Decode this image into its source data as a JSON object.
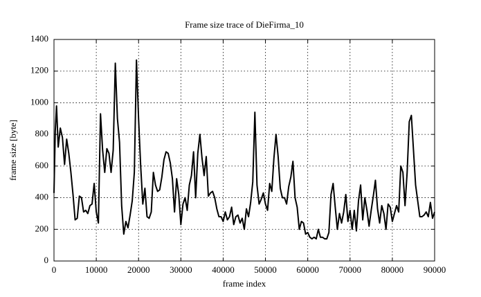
{
  "chart_data": {
    "type": "line",
    "title": "Frame size trace of DieFirma_10",
    "xlabel": "frame index",
    "ylabel": "frame size [byte]",
    "xlim": [
      0,
      90000
    ],
    "ylim": [
      0,
      1400
    ],
    "xticks": [
      0,
      10000,
      20000,
      30000,
      40000,
      50000,
      60000,
      70000,
      80000,
      90000
    ],
    "yticks": [
      0,
      200,
      400,
      600,
      800,
      1000,
      1200,
      1400
    ],
    "grid": true,
    "x": [
      0,
      300,
      600,
      1000,
      1500,
      2000,
      2500,
      3000,
      3500,
      4000,
      4500,
      5000,
      5500,
      6000,
      6500,
      7000,
      7500,
      8000,
      8500,
      9000,
      9500,
      10000,
      10500,
      11000,
      11500,
      12000,
      12500,
      13000,
      13500,
      14000,
      14500,
      15000,
      15500,
      16000,
      16500,
      17000,
      17500,
      18000,
      18500,
      19000,
      19500,
      20000,
      20500,
      21000,
      21500,
      22000,
      22500,
      23000,
      23500,
      24000,
      24500,
      25000,
      25500,
      26000,
      26500,
      27000,
      27500,
      28000,
      28500,
      29000,
      29500,
      30000,
      30500,
      31000,
      31500,
      32000,
      32500,
      33000,
      33500,
      34000,
      34500,
      35000,
      35500,
      36000,
      36500,
      37000,
      37500,
      38000,
      38500,
      39000,
      39500,
      40000,
      40500,
      41000,
      41500,
      42000,
      42500,
      43000,
      43500,
      44000,
      44500,
      45000,
      45500,
      46000,
      46500,
      47000,
      47500,
      48000,
      48500,
      49000,
      49500,
      50000,
      50500,
      51000,
      51500,
      52000,
      52500,
      53000,
      53500,
      54000,
      54500,
      55000,
      55500,
      56000,
      56500,
      57000,
      57500,
      58000,
      58500,
      59000,
      59500,
      60000,
      60500,
      61000,
      61500,
      62000,
      62500,
      63000,
      63500,
      64000,
      64500,
      65000,
      65500,
      66000,
      66500,
      67000,
      67500,
      68000,
      68500,
      69000,
      69500,
      70000,
      70500,
      71000,
      71500,
      72000,
      72500,
      73000,
      73500,
      74000,
      74500,
      75000,
      75500,
      76000,
      76500,
      77000,
      77500,
      78000,
      78500,
      79000,
      79500,
      80000,
      80500,
      81000,
      81500,
      82000,
      82500,
      83000,
      83500,
      84000,
      84500,
      85000,
      85500,
      86000,
      86500,
      87000,
      87500,
      88000,
      88500,
      89000,
      89500,
      90000
    ],
    "series": [
      {
        "name": "frame size",
        "color": "#000000",
        "values": [
          430,
          820,
          980,
          720,
          840,
          780,
          610,
          770,
          680,
          560,
          420,
          260,
          270,
          410,
          400,
          310,
          320,
          300,
          350,
          360,
          490,
          310,
          240,
          930,
          700,
          560,
          710,
          680,
          560,
          700,
          1250,
          900,
          750,
          350,
          170,
          250,
          210,
          290,
          380,
          560,
          1270,
          900,
          600,
          360,
          460,
          280,
          270,
          310,
          560,
          480,
          440,
          450,
          530,
          640,
          690,
          680,
          620,
          520,
          310,
          520,
          420,
          230,
          360,
          400,
          320,
          480,
          540,
          690,
          400,
          680,
          800,
          650,
          540,
          660,
          410,
          430,
          440,
          400,
          330,
          280,
          280,
          250,
          310,
          260,
          280,
          340,
          230,
          280,
          290,
          240,
          270,
          200,
          330,
          280,
          370,
          500,
          940,
          480,
          360,
          390,
          430,
          360,
          320,
          490,
          440,
          650,
          800,
          660,
          460,
          400,
          400,
          360,
          470,
          530,
          630,
          400,
          340,
          200,
          250,
          240,
          170,
          180,
          150,
          140,
          150,
          140,
          200,
          150,
          150,
          140,
          140,
          180,
          420,
          490,
          340,
          200,
          300,
          240,
          310,
          420,
          250,
          320,
          200,
          320,
          190,
          380,
          480,
          260,
          400,
          320,
          220,
          320,
          410,
          510,
          330,
          240,
          350,
          300,
          200,
          360,
          340,
          250,
          300,
          350,
          310,
          600,
          560,
          350,
          560,
          880,
          920,
          700,
          480,
          380,
          280,
          280,
          290,
          310,
          280,
          370,
          270,
          310
        ]
      }
    ]
  }
}
